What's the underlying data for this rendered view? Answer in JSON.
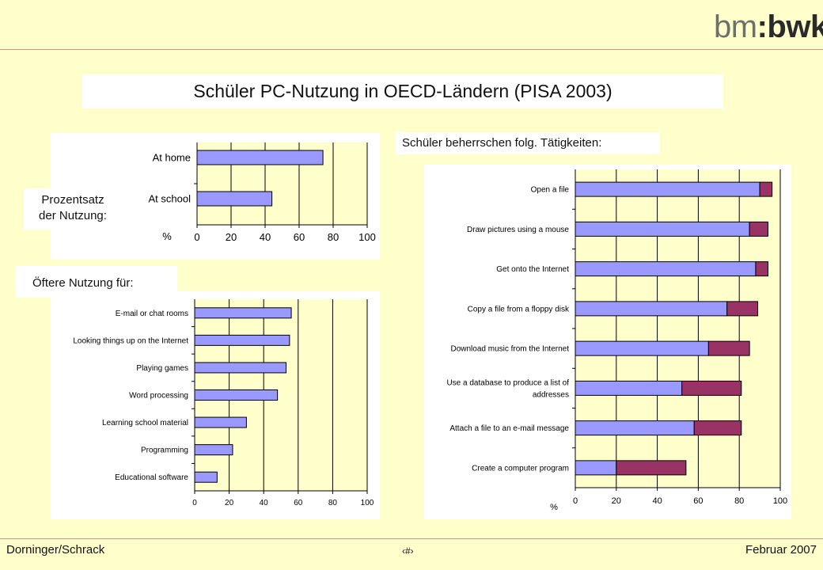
{
  "brand": {
    "logo_text_light": "bm",
    "logo_text_bold": ":bwk"
  },
  "title": "Schüler PC-Nutzung in OECD-Ländern (PISA 2003)",
  "labels": {
    "usage_percent_line1": "Prozentsatz",
    "usage_percent_line2": "der Nutzung:",
    "frequent_use": "Öftere Nutzung für:",
    "skills": "Schüler beherrschen folg. Tätigkeiten:"
  },
  "footer": {
    "authors": "Dorninger/Schrack",
    "page_marker": "‹#›",
    "date": "Februar 2007"
  },
  "colors": {
    "bar_main": "#9999FF",
    "bar_extra": "#993366",
    "plot_bg": "#FFFFCC",
    "page_bg": "#FFFFCC"
  },
  "chart_data": [
    {
      "type": "bar",
      "orientation": "horizontal",
      "categories": [
        "At home",
        "At school"
      ],
      "values": [
        74,
        44
      ],
      "xlabel": "%",
      "xlim": [
        0,
        100
      ],
      "xticks": [
        0,
        20,
        40,
        60,
        80,
        100
      ],
      "grid": true
    },
    {
      "type": "bar",
      "orientation": "horizontal",
      "categories": [
        "E-mail or chat rooms",
        "Looking things up on the Internet",
        "Playing games",
        "Word processing",
        "Learning school material",
        "Programming",
        "Educational software"
      ],
      "values": [
        56,
        55,
        53,
        48,
        30,
        22,
        13
      ],
      "xlim": [
        0,
        100
      ],
      "xticks": [
        0,
        20,
        40,
        60,
        80,
        100
      ],
      "grid": true
    },
    {
      "type": "bar",
      "orientation": "horizontal",
      "stacked": true,
      "categories": [
        "Open a file",
        "Draw pictures using a mouse",
        "Get onto the Internet",
        "Copy a file from a floppy disk",
        "Download music from the Internet",
        "Use a database to produce a list of addresses",
        "Attach a file to an e-mail message",
        "Create a computer program"
      ],
      "series": [
        {
          "values": [
            90,
            85,
            88,
            74,
            65,
            52,
            58,
            20
          ]
        },
        {
          "values": [
            6,
            9,
            6,
            15,
            20,
            29,
            23,
            34
          ]
        }
      ],
      "xlabel": "%",
      "xlim": [
        0,
        100
      ],
      "xticks": [
        0,
        20,
        40,
        60,
        80,
        100
      ],
      "grid": true
    }
  ]
}
